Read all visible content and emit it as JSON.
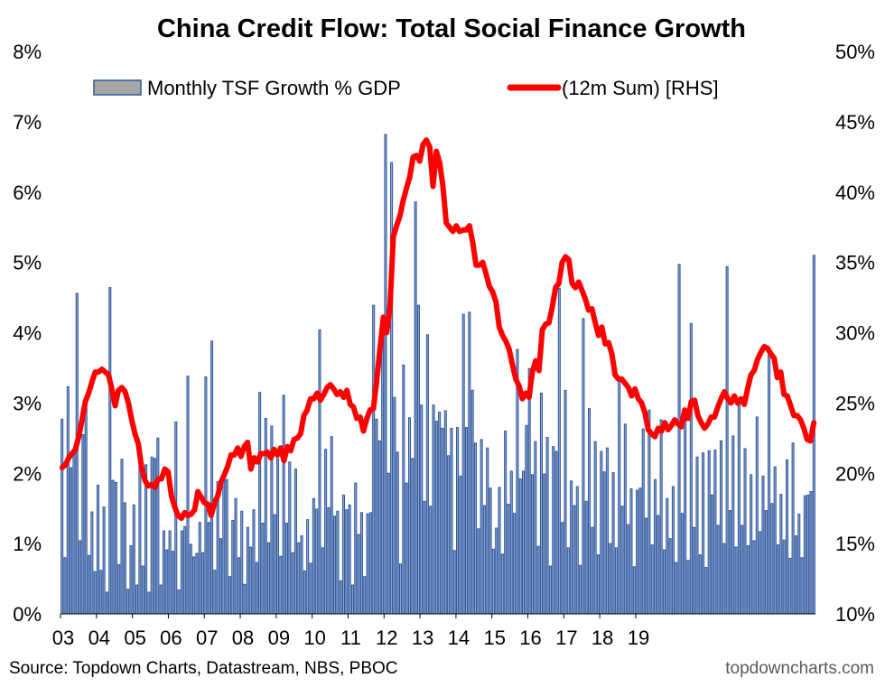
{
  "chart_data": {
    "type": "bar+line",
    "title": "China Credit Flow: Total Social Finance Growth",
    "legend_placement": "top",
    "grid": false,
    "colors": {
      "bar_fill": "#8ea9db",
      "bar_stroke": "#2f5597",
      "line": "#ff0000",
      "footer_right": "#595959"
    },
    "x_axis": {
      "tick_labels": [
        "03",
        "04",
        "05",
        "06",
        "07",
        "08",
        "09",
        "10",
        "11",
        "12",
        "13",
        "14",
        "15",
        "16",
        "17",
        "18",
        "19"
      ],
      "start": "2003-01",
      "end": "2019-02"
    },
    "y_left": {
      "range": [
        0,
        8
      ],
      "tick_labels": [
        "0%",
        "1%",
        "2%",
        "3%",
        "4%",
        "5%",
        "6%",
        "7%",
        "8%"
      ]
    },
    "y_right": {
      "range": [
        10,
        50
      ],
      "tick_labels": [
        "10%",
        "15%",
        "20%",
        "25%",
        "30%",
        "35%",
        "40%",
        "45%",
        "50%"
      ]
    },
    "series": [
      {
        "name": "Monthly TSF Growth % GDP",
        "kind": "bar",
        "axis": "left",
        "values": [
          2.77,
          0.8,
          3.23,
          2.08,
          2.34,
          4.56,
          1.04,
          2.55,
          3.07,
          0.83,
          1.45,
          0.6,
          1.83,
          0.62,
          1.52,
          0.31,
          4.64,
          1.9,
          1.87,
          0.7,
          2.2,
          1.58,
          0.35,
          0.97,
          1.55,
          0.41,
          2.3,
          0.68,
          2.12,
          0.31,
          2.23,
          2.21,
          2.5,
          0.41,
          1.18,
          0.91,
          1.18,
          0.89,
          2.73,
          0.34,
          1.18,
          1.24,
          3.38,
          0.99,
          0.81,
          0.86,
          1.3,
          0.87,
          3.37,
          1.3,
          3.88,
          0.62,
          1.88,
          1.07,
          1.93,
          1.91,
          0.53,
          1.33,
          1.64,
          0.8,
          1.46,
          0.42,
          1.23,
          0.95,
          1.48,
          0.73,
          3.15,
          1.29,
          2.78,
          1.01,
          2.67,
          1.41,
          2.21,
          0.82,
          3.11,
          1.29,
          2.16,
          0.87,
          2.06,
          1.01,
          1.11,
          0.61,
          1.34,
          0.72,
          1.64,
          1.49,
          4.04,
          0.94,
          2.34,
          1.51,
          2.52,
          1.39,
          1.46,
          0.47,
          1.69,
          1.48,
          1.55,
          0.41,
          1.86,
          1.13,
          1.44,
          0.53,
          1.42,
          1.44,
          4.39,
          2.77,
          2.46,
          3.97,
          6.82,
          2.0,
          6.42,
          3.08,
          2.3,
          0.71,
          3.54,
          1.86,
          2.79,
          2.21,
          5.86,
          4.39,
          2.97,
          1.6,
          3.97,
          1.53,
          2.97,
          2.74,
          2.87,
          2.64,
          2.89,
          2.25,
          2.64,
          0.9,
          2.65,
          1.96,
          4.26,
          2.65,
          4.29,
          3.18,
          2.43,
          1.21,
          2.48,
          1.54,
          2.36,
          1.79,
          0.92,
          1.22,
          1.8,
          0.85,
          2.6,
          1.56,
          2.03,
          1.43,
          3.76,
          1.92,
          2.03,
          2.68,
          3.49,
          1.98,
          2.45,
          0.96,
          3.14,
          1.99,
          2.51,
          0.68,
          2.38,
          2.31,
          4.63,
          1.3,
          3.18,
          0.94,
          1.89,
          1.54,
          1.81,
          0.69,
          4.2,
          1.6,
          2.92,
          1.23,
          2.45,
          0.84,
          2.31,
          2.02,
          2.36,
          1.0,
          2.01,
          0.94,
          3.35,
          1.53,
          2.7,
          1.27,
          1.78,
          0.67,
          1.76,
          1.79,
          2.63,
          1.36,
          2.9,
          0.98,
          1.91,
          1.4,
          2.76,
          0.91,
          1.64,
          1.07,
          1.81,
          0.73,
          4.97,
          1.43,
          2.76,
          0.76,
          4.13,
          1.23,
          2.23,
          0.84,
          2.29,
          0.66,
          2.32,
          1.69,
          2.33,
          1.26,
          2.46,
          1.0,
          4.94,
          1.47,
          2.53,
          0.95,
          2.98,
          1.26,
          2.35,
          0.97,
          1.98,
          1.04,
          2.8,
          1.17,
          1.96,
          1.47,
          3.74,
          1.57,
          2.09,
          0.98,
          1.7,
          1.05,
          2.19,
          0.79,
          2.43,
          1.11,
          1.42,
          0.8,
          1.68,
          1.69,
          1.74,
          5.1
        ]
      },
      {
        "name": "(12m Sum) [RHS]",
        "kind": "line",
        "axis": "right",
        "values": [
          20.4,
          20.6,
          21.1,
          21.4,
          21.7,
          22.6,
          23.8,
          25.1,
          25.7,
          26.5,
          27.2,
          27.2,
          27.4,
          27.2,
          27.0,
          26.0,
          24.8,
          25.9,
          26.1,
          25.8,
          25.0,
          23.8,
          22.8,
          22.1,
          20.4,
          19.5,
          19.1,
          19.2,
          19.0,
          19.6,
          19.6,
          20.3,
          20.1,
          18.4,
          17.6,
          17.0,
          16.8,
          17.2,
          17.0,
          17.1,
          17.4,
          18.7,
          18.3,
          17.9,
          17.8,
          17.0,
          17.9,
          18.4,
          19.4,
          19.9,
          20.5,
          21.3,
          21.3,
          21.8,
          21.2,
          21.9,
          22.2,
          20.3,
          21.1,
          20.8,
          21.4,
          21.4,
          21.5,
          21.1,
          21.7,
          21.3,
          21.8,
          20.9,
          21.9,
          21.6,
          22.4,
          22.5,
          22.8,
          24.1,
          24.5,
          25.3,
          25.3,
          25.7,
          25.2,
          25.6,
          26.1,
          26.3,
          26.0,
          25.6,
          25.8,
          25.4,
          25.9,
          24.9,
          24.7,
          23.9,
          24.0,
          23.0,
          23.9,
          24.5,
          24.6,
          26.6,
          28.9,
          31.1,
          30.0,
          31.8,
          36.8,
          37.6,
          38.3,
          39.4,
          40.3,
          41.1,
          42.5,
          42.6,
          42.2,
          43.4,
          43.7,
          43.2,
          40.4,
          42.9,
          42.1,
          40.4,
          37.8,
          37.5,
          37.2,
          37.6,
          37.2,
          37.3,
          37.3,
          37.6,
          36.4,
          34.8,
          34.8,
          35.0,
          34.2,
          33.3,
          32.9,
          32.2,
          30.4,
          29.8,
          29.4,
          28.8,
          27.7,
          26.7,
          26.2,
          25.3,
          25.7,
          25.4,
          27.2,
          28.0,
          27.3,
          30.2,
          30.6,
          30.7,
          31.8,
          33.2,
          33.5,
          35.0,
          35.4,
          35.2,
          33.5,
          33.2,
          33.6,
          33.0,
          32.4,
          31.6,
          31.7,
          30.7,
          29.8,
          30.4,
          29.2,
          29.3,
          28.5,
          27.0,
          26.7,
          26.7,
          26.4,
          26.1,
          25.5,
          26.0,
          25.3,
          25.0,
          24.3,
          23.1,
          22.8,
          22.6,
          23.2,
          23.0,
          23.6,
          23.1,
          23.4,
          23.8,
          23.5,
          23.3,
          24.5,
          23.9,
          25.1,
          25.2,
          24.1,
          23.6,
          23.2,
          23.5,
          24.0,
          24.0,
          24.7,
          25.3,
          25.8,
          25.3,
          25.0,
          25.5,
          25.0,
          25.3,
          24.9,
          26.0,
          27.0,
          27.3,
          28.1,
          28.6,
          29.0,
          28.9,
          28.5,
          28.2,
          26.8,
          27.2,
          25.6,
          25.5,
          24.8,
          24.1,
          24.1,
          23.8,
          23.2,
          22.4,
          22.3,
          23.6
        ]
      }
    ]
  },
  "footer": {
    "source": "Source: Topdown Charts, Datastream, NBS, PBOC",
    "brand": "topdowncharts.com"
  }
}
